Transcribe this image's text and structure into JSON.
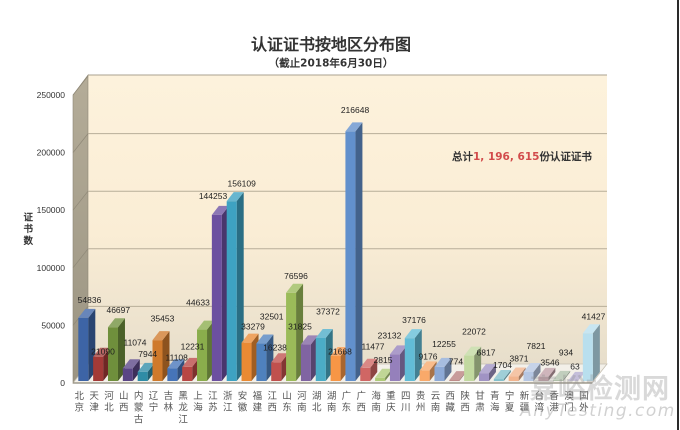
{
  "chart_data": {
    "type": "bar",
    "style": "3d-clustered-column",
    "title": "认证证书按地区分布图",
    "subtitle": "（截止2018年6月30日）",
    "xlabel": "",
    "ylabel": "证书数",
    "ylim": [
      0,
      250000
    ],
    "yticks": [
      0,
      50000,
      100000,
      150000,
      200000,
      250000
    ],
    "grid": true,
    "legend": null,
    "data_labels": true,
    "categories": [
      "北京",
      "天津",
      "河北",
      "山西",
      "内蒙古",
      "辽宁",
      "吉林",
      "黑龙江",
      "上海",
      "江苏",
      "浙江",
      "安徽",
      "福建",
      "江西",
      "山东",
      "河南",
      "湖北",
      "湖南",
      "广东",
      "广西",
      "海南",
      "重庆",
      "四川",
      "贵州",
      "云南",
      "西藏",
      "陕西",
      "甘肃",
      "青海",
      "宁夏",
      "新疆",
      "台湾",
      "香港",
      "澳门",
      "国外"
    ],
    "values": [
      54836,
      21090,
      46697,
      11074,
      7944,
      35453,
      11108,
      12231,
      44633,
      144253,
      156109,
      33279,
      32501,
      16238,
      76596,
      31825,
      37372,
      21668,
      216648,
      11477,
      2815,
      23132,
      37176,
      9176,
      12255,
      774,
      22072,
      6817,
      1704,
      3871,
      7821,
      3546,
      934,
      63,
      41427
    ],
    "colors": [
      "#3d64a6",
      "#a33a37",
      "#6f8f3c",
      "#5a4585",
      "#2f8ca6",
      "#cf7a2c",
      "#4674b8",
      "#b84744",
      "#8aad4c",
      "#6c50a0",
      "#3ea2c2",
      "#ea8a33",
      "#4f81bd",
      "#c0504d",
      "#9bbb59",
      "#8064a2",
      "#4bacc6",
      "#f79646",
      "#6290cc",
      "#d06664",
      "#aecb78",
      "#9580bb",
      "#62bcd6",
      "#f9a96a",
      "#8eaad6",
      "#b9807e",
      "#c2d9a0",
      "#a093c4",
      "#84c0cc",
      "#f2b48e",
      "#b6c7e3",
      "#c2a0a8",
      "#b0c0aa",
      "#b3acd0",
      "#b9dfee"
    ],
    "annotation": {
      "prefix": "总计",
      "total": "1, 196, 615",
      "suffix": "份认证证书",
      "total_color": "#d24b4b"
    }
  },
  "watermark": {
    "cn": "嘉峪检测网",
    "en": "AnyTesting.com"
  }
}
